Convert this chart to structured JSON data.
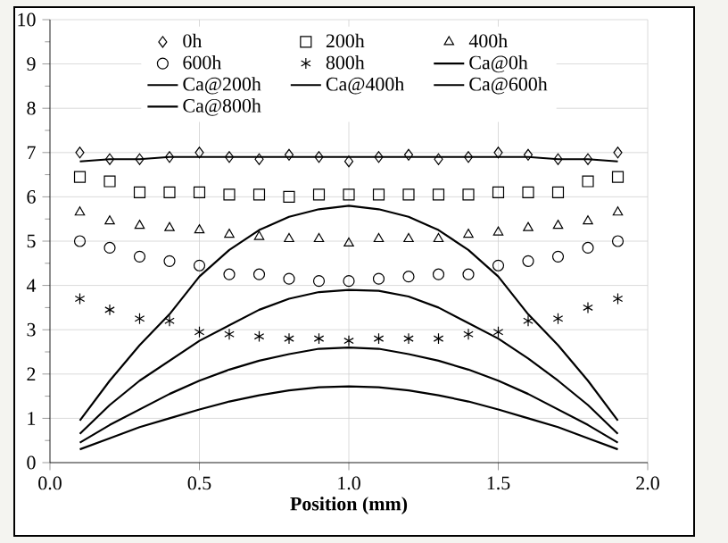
{
  "chart_data": {
    "type": "scatter",
    "xlabel": "Position (mm)",
    "x": [
      0.1,
      0.2,
      0.3,
      0.4,
      0.5,
      0.6,
      0.7,
      0.8,
      0.9,
      1.0,
      1.1,
      1.2,
      1.3,
      1.4,
      1.5,
      1.6,
      1.7,
      1.8,
      1.9
    ],
    "xlim": [
      0,
      2
    ],
    "ylim": [
      0,
      10
    ],
    "xticks": [
      {
        "value": 0,
        "label": "0.0"
      },
      {
        "value": 0.5,
        "label": "0.5"
      },
      {
        "value": 1,
        "label": "1.0"
      },
      {
        "value": 1.5,
        "label": "1.5"
      },
      {
        "value": 2,
        "label": "2.0"
      }
    ],
    "yticks": [
      0,
      1,
      2,
      3,
      4,
      5,
      6,
      7,
      8,
      9,
      10
    ],
    "grid": true,
    "legend": "top",
    "series": [
      {
        "name": "0h",
        "color": "#000000",
        "marker": "diamond",
        "values": [
          7.0,
          6.85,
          6.85,
          6.9,
          7.0,
          6.9,
          6.85,
          6.95,
          6.9,
          6.8,
          6.9,
          6.95,
          6.85,
          6.9,
          7.0,
          6.95,
          6.85,
          6.85,
          7.0
        ]
      },
      {
        "name": "200h",
        "color": "#000000",
        "marker": "square",
        "values": [
          6.45,
          6.35,
          6.1,
          6.1,
          6.1,
          6.05,
          6.05,
          6.0,
          6.05,
          6.05,
          6.05,
          6.05,
          6.05,
          6.05,
          6.1,
          6.1,
          6.1,
          6.35,
          6.45
        ]
      },
      {
        "name": "400h",
        "color": "#000000",
        "marker": "triangle",
        "values": [
          5.65,
          5.45,
          5.35,
          5.3,
          5.25,
          5.15,
          5.1,
          5.05,
          5.05,
          4.95,
          5.05,
          5.05,
          5.05,
          5.15,
          5.2,
          5.3,
          5.35,
          5.45,
          5.65
        ]
      },
      {
        "name": "600h",
        "color": "#000000",
        "marker": "circle",
        "values": [
          5.0,
          4.85,
          4.65,
          4.55,
          4.45,
          4.25,
          4.25,
          4.15,
          4.1,
          4.1,
          4.15,
          4.2,
          4.25,
          4.25,
          4.45,
          4.55,
          4.65,
          4.85,
          5.0
        ]
      },
      {
        "name": "800h",
        "color": "#000000",
        "marker": "cross",
        "values": [
          3.7,
          3.45,
          3.25,
          3.2,
          2.95,
          2.9,
          2.85,
          2.8,
          2.8,
          2.75,
          2.8,
          2.8,
          2.8,
          2.9,
          2.95,
          3.2,
          3.25,
          3.5,
          3.7
        ]
      },
      {
        "name": "Ca@0h",
        "type": "line",
        "color": "#000000",
        "values": [
          6.8,
          6.85,
          6.85,
          6.9,
          6.9,
          6.9,
          6.9,
          6.9,
          6.9,
          6.9,
          6.9,
          6.9,
          6.9,
          6.9,
          6.9,
          6.9,
          6.85,
          6.85,
          6.8
        ]
      },
      {
        "name": "Ca@200h",
        "type": "line",
        "color": "#000000",
        "values": [
          0.95,
          1.85,
          2.65,
          3.35,
          4.2,
          4.8,
          5.25,
          5.55,
          5.72,
          5.8,
          5.72,
          5.55,
          5.25,
          4.8,
          4.2,
          3.35,
          2.65,
          1.85,
          0.95
        ]
      },
      {
        "name": "Ca@400h",
        "type": "line",
        "color": "#000000",
        "values": [
          0.65,
          1.3,
          1.85,
          2.3,
          2.75,
          3.1,
          3.45,
          3.7,
          3.85,
          3.9,
          3.88,
          3.75,
          3.5,
          3.15,
          2.8,
          2.35,
          1.85,
          1.3,
          0.65
        ]
      },
      {
        "name": "Ca@600h",
        "type": "line",
        "color": "#000000",
        "values": [
          0.45,
          0.85,
          1.2,
          1.55,
          1.85,
          2.1,
          2.3,
          2.45,
          2.57,
          2.6,
          2.57,
          2.45,
          2.3,
          2.1,
          1.85,
          1.55,
          1.2,
          0.85,
          0.45
        ]
      },
      {
        "name": "Ca@800h",
        "type": "line",
        "color": "#000000",
        "values": [
          0.3,
          0.55,
          0.8,
          1.0,
          1.2,
          1.38,
          1.52,
          1.63,
          1.7,
          1.72,
          1.7,
          1.63,
          1.52,
          1.38,
          1.2,
          1.0,
          0.8,
          0.55,
          0.3
        ]
      }
    ]
  }
}
